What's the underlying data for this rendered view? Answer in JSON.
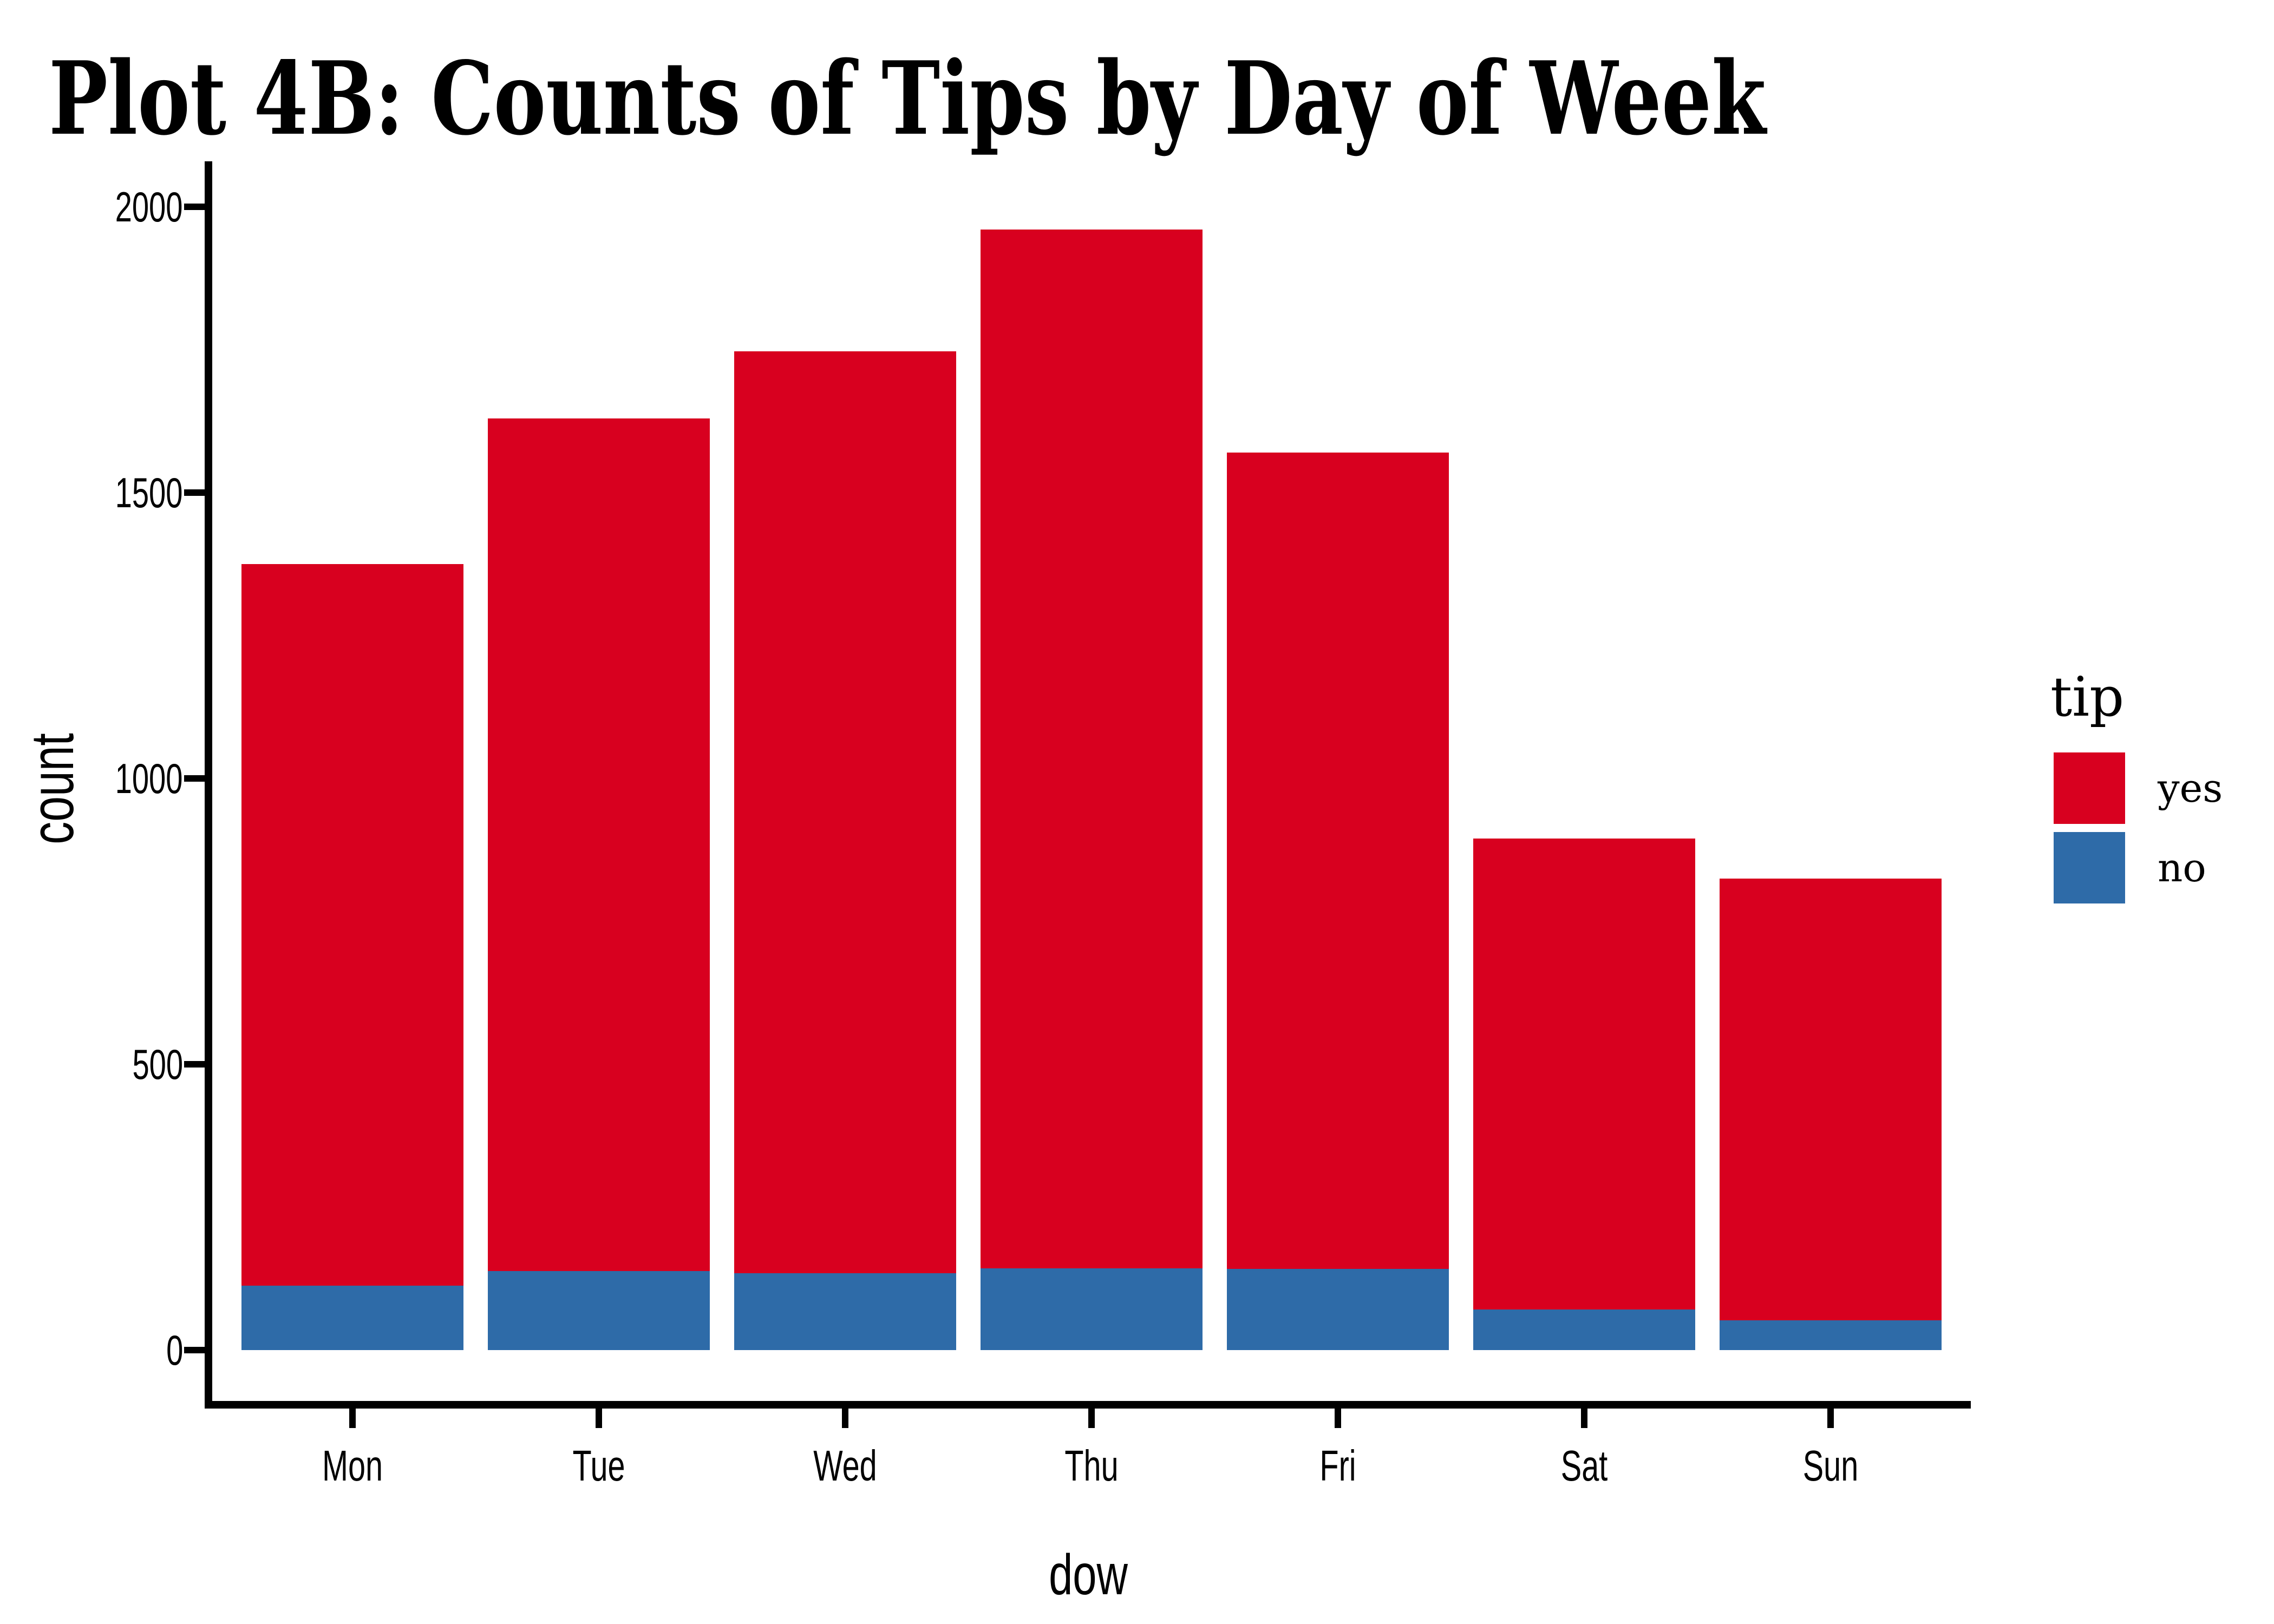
{
  "title": "Plot 4B: Counts of Tips by Day of Week",
  "chart_data": {
    "type": "bar",
    "stacked": true,
    "title": "Plot 4B: Counts of Tips by Day of Week",
    "xlabel": "dow",
    "ylabel": "count",
    "categories": [
      "Mon",
      "Tue",
      "Wed",
      "Thu",
      "Fri",
      "Sat",
      "Sun"
    ],
    "series": [
      {
        "name": "yes",
        "color": "#D8001F",
        "values": [
          1262,
          1492,
          1613,
          1817,
          1428,
          824,
          773
        ]
      },
      {
        "name": "no",
        "color": "#2E6BA8",
        "values": [
          113,
          138,
          134,
          143,
          142,
          71,
          52
        ]
      }
    ],
    "totals": [
      1375,
      1630,
      1747,
      1960,
      1570,
      895,
      825
    ],
    "ylim": [
      0,
      2000
    ],
    "yticks": [
      0,
      500,
      1000,
      1500,
      2000
    ],
    "grid": false,
    "legend_title": "tip",
    "legend_position": "right",
    "legend_items": [
      {
        "label": "yes",
        "color": "#D8001F"
      },
      {
        "label": "no",
        "color": "#2E6BA8"
      }
    ]
  },
  "colors": {
    "yes_red": "#D8001F",
    "no_blue": "#2E6BA8",
    "axis_black": "#000000",
    "background": "#FFFFFF"
  }
}
